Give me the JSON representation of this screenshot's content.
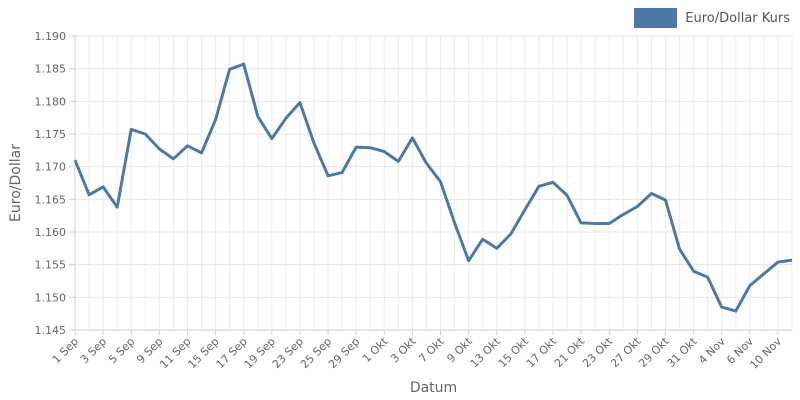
{
  "legend": {
    "label": "Euro/Dollar Kurs"
  },
  "chart_data": {
    "type": "line",
    "xlabel": "Datum",
    "ylabel": "Euro/Dollar",
    "ylim": [
      1.145,
      1.19
    ],
    "y_ticks": [
      "1.145",
      "1.150",
      "1.155",
      "1.160",
      "1.165",
      "1.170",
      "1.175",
      "1.180",
      "1.185",
      "1.190"
    ],
    "x_tick_labels": [
      "1 Sep",
      "3 Sep",
      "5 Sep",
      "9 Sep",
      "11 Sep",
      "15 Sep",
      "17 Sep",
      "19 Sep",
      "23 Sep",
      "25 Sep",
      "29 Sep",
      "1 Okt",
      "3 Okt",
      "7 Okt",
      "9 Okt",
      "13 Okt",
      "15 Okt",
      "17 Okt",
      "21 Okt",
      "23 Okt",
      "27 Okt",
      "29 Okt",
      "31 Okt",
      "4 Nov",
      "6 Nov",
      "10 Nov"
    ],
    "grid": true,
    "legend_position": "top-right",
    "series": [
      {
        "name": "Euro/Dollar Kurs",
        "color": "#4e79a7",
        "values": [
          1.171,
          1.1657,
          1.1669,
          1.1638,
          1.1757,
          1.175,
          1.1727,
          1.1712,
          1.1732,
          1.1721,
          1.1772,
          1.1849,
          1.1857,
          1.1777,
          1.1743,
          1.1774,
          1.1798,
          1.1736,
          1.1686,
          1.1691,
          1.173,
          1.1729,
          1.1723,
          1.1708,
          1.1744,
          1.1705,
          1.1677,
          1.1614,
          1.1556,
          1.1589,
          1.1575,
          1.1597,
          1.1634,
          1.167,
          1.1676,
          1.1656,
          1.1614,
          1.1613,
          1.1613,
          1.1627,
          1.1639,
          1.1659,
          1.1649,
          1.1574,
          1.154,
          1.1531,
          1.1485,
          1.1479,
          1.1518,
          1.1536,
          1.1554,
          1.1557
        ]
      }
    ]
  }
}
